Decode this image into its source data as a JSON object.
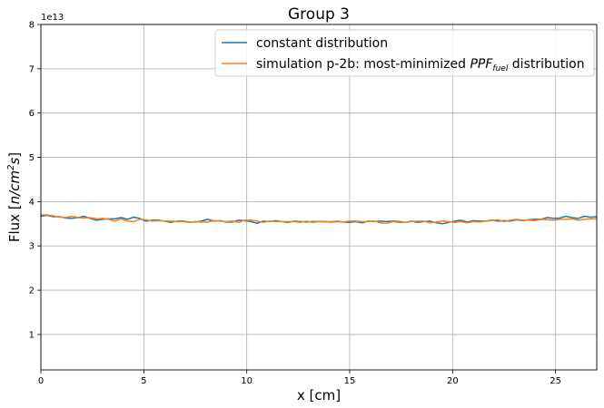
{
  "chart_data": {
    "type": "line",
    "title": "Group 3",
    "xlabel": "x [cm]",
    "ylabel_main": "Flux [",
    "ylabel_italic": "n/cm",
    "ylabel_sup": "2",
    "ylabel_italic2": "s",
    "ylabel_end": "]",
    "y_offset_label": "1e13",
    "xlim": [
      0,
      27
    ],
    "ylim": [
      0.2,
      8
    ],
    "grid": true,
    "legend_position": "top-right",
    "x_ticks": [
      0,
      5,
      10,
      15,
      20,
      25
    ],
    "y_ticks": [
      1,
      2,
      3,
      4,
      5,
      6,
      7,
      8
    ],
    "series": [
      {
        "name": "constant distribution",
        "color": "#1f77b4",
        "x": [
          0.0,
          0.3,
          0.6,
          0.9,
          1.2,
          1.5,
          1.8,
          2.1,
          2.4,
          2.7,
          3.0,
          3.3,
          3.6,
          3.9,
          4.2,
          4.5,
          4.8,
          5.1,
          5.4,
          5.7,
          6.0,
          6.3,
          6.6,
          6.9,
          7.2,
          7.5,
          7.8,
          8.1,
          8.4,
          8.7,
          9.0,
          9.3,
          9.6,
          9.9,
          10.2,
          10.5,
          10.8,
          11.1,
          11.4,
          11.7,
          12.0,
          12.3,
          12.6,
          12.9,
          13.2,
          13.5,
          13.8,
          14.1,
          14.4,
          14.7,
          15.0,
          15.3,
          15.6,
          15.9,
          16.2,
          16.5,
          16.8,
          17.1,
          17.4,
          17.7,
          18.0,
          18.3,
          18.6,
          18.9,
          19.2,
          19.5,
          19.8,
          20.1,
          20.4,
          20.7,
          21.0,
          21.3,
          21.6,
          21.9,
          22.2,
          22.5,
          22.8,
          23.1,
          23.4,
          23.7,
          24.0,
          24.3,
          24.6,
          24.9,
          25.2,
          25.5,
          25.8,
          26.1,
          26.4,
          26.7,
          27.0
        ],
        "values": [
          3.67,
          3.69,
          3.66,
          3.66,
          3.63,
          3.62,
          3.64,
          3.67,
          3.62,
          3.58,
          3.6,
          3.61,
          3.61,
          3.64,
          3.6,
          3.65,
          3.62,
          3.56,
          3.58,
          3.58,
          3.56,
          3.53,
          3.56,
          3.56,
          3.54,
          3.54,
          3.56,
          3.6,
          3.56,
          3.57,
          3.54,
          3.54,
          3.58,
          3.57,
          3.55,
          3.51,
          3.56,
          3.55,
          3.57,
          3.55,
          3.53,
          3.56,
          3.55,
          3.54,
          3.55,
          3.55,
          3.55,
          3.54,
          3.55,
          3.54,
          3.53,
          3.55,
          3.52,
          3.56,
          3.55,
          3.56,
          3.55,
          3.56,
          3.55,
          3.53,
          3.56,
          3.53,
          3.55,
          3.56,
          3.52,
          3.5,
          3.53,
          3.56,
          3.58,
          3.54,
          3.57,
          3.56,
          3.56,
          3.58,
          3.56,
          3.57,
          3.56,
          3.59,
          3.57,
          3.59,
          3.6,
          3.6,
          3.64,
          3.62,
          3.63,
          3.67,
          3.64,
          3.62,
          3.67,
          3.65,
          3.66
        ]
      },
      {
        "name_prefix": "simulation p-2b: most-minimized ",
        "name_italic": "PPF",
        "name_sub": "fuel",
        "name_suffix": " distribution",
        "color": "#ff7f0e",
        "x": [
          0.0,
          0.3,
          0.6,
          0.9,
          1.2,
          1.5,
          1.8,
          2.1,
          2.4,
          2.7,
          3.0,
          3.3,
          3.6,
          3.9,
          4.2,
          4.5,
          4.8,
          5.1,
          5.4,
          5.7,
          6.0,
          6.3,
          6.6,
          6.9,
          7.2,
          7.5,
          7.8,
          8.1,
          8.4,
          8.7,
          9.0,
          9.3,
          9.6,
          9.9,
          10.2,
          10.5,
          10.8,
          11.1,
          11.4,
          11.7,
          12.0,
          12.3,
          12.6,
          12.9,
          13.2,
          13.5,
          13.8,
          14.1,
          14.4,
          14.7,
          15.0,
          15.3,
          15.6,
          15.9,
          16.2,
          16.5,
          16.8,
          17.1,
          17.4,
          17.7,
          18.0,
          18.3,
          18.6,
          18.9,
          19.2,
          19.5,
          19.8,
          20.1,
          20.4,
          20.7,
          21.0,
          21.3,
          21.6,
          21.9,
          22.2,
          22.5,
          22.8,
          23.1,
          23.4,
          23.7,
          24.0,
          24.3,
          24.6,
          24.9,
          25.2,
          25.5,
          25.8,
          26.1,
          26.4,
          26.7,
          27.0
        ],
        "values": [
          3.7,
          3.7,
          3.68,
          3.65,
          3.64,
          3.67,
          3.64,
          3.63,
          3.64,
          3.61,
          3.62,
          3.6,
          3.56,
          3.61,
          3.56,
          3.55,
          3.6,
          3.59,
          3.56,
          3.57,
          3.56,
          3.56,
          3.55,
          3.55,
          3.53,
          3.55,
          3.54,
          3.54,
          3.57,
          3.56,
          3.55,
          3.56,
          3.53,
          3.58,
          3.58,
          3.56,
          3.53,
          3.56,
          3.55,
          3.55,
          3.55,
          3.55,
          3.53,
          3.56,
          3.53,
          3.55,
          3.54,
          3.55,
          3.56,
          3.54,
          3.56,
          3.56,
          3.55,
          3.55,
          3.56,
          3.52,
          3.51,
          3.55,
          3.53,
          3.53,
          3.55,
          3.56,
          3.56,
          3.52,
          3.54,
          3.56,
          3.55,
          3.53,
          3.55,
          3.52,
          3.55,
          3.54,
          3.56,
          3.57,
          3.59,
          3.55,
          3.58,
          3.6,
          3.58,
          3.58,
          3.57,
          3.6,
          3.59,
          3.58,
          3.6,
          3.6,
          3.61,
          3.58,
          3.6,
          3.61,
          3.61
        ]
      }
    ]
  }
}
